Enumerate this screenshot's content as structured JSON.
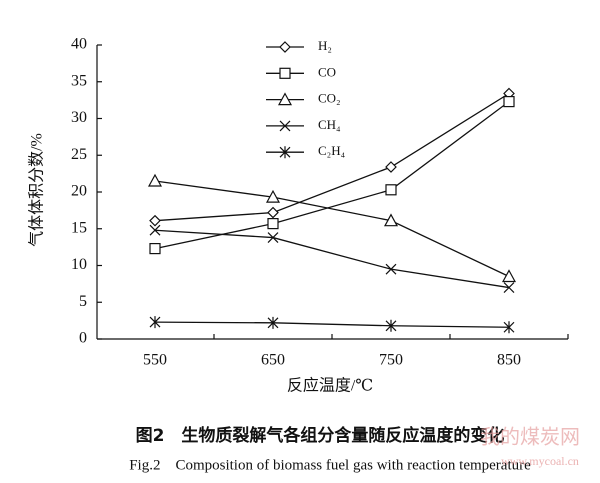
{
  "chart_data": {
    "type": "line",
    "ylabel": "气体体积分数/%",
    "xlabel": "反应温度/℃",
    "caption_cn": "图2　生物质裂解气各组分含量随反应温度的变化",
    "caption_en": "Fig.2　Composition of biomass fuel gas with reaction temperature",
    "watermark": "我的煤炭网",
    "watermark_url": "www.mycoal.cn",
    "categories": [
      "550",
      "650",
      "750",
      "850"
    ],
    "ylim": [
      0,
      40
    ],
    "yticks": [
      0,
      5,
      10,
      15,
      20,
      25,
      30,
      35,
      40
    ],
    "legend": "top",
    "series": [
      {
        "name": "H₂",
        "color": "#111111",
        "marker": "diamond",
        "values": [
          16.1,
          17.2,
          23.4,
          33.4
        ]
      },
      {
        "name": "CO",
        "color": "#111111",
        "marker": "square",
        "values": [
          12.3,
          15.7,
          20.3,
          32.3
        ]
      },
      {
        "name": "CO₂",
        "color": "#111111",
        "marker": "triangle",
        "values": [
          21.5,
          19.3,
          16.1,
          8.5
        ]
      },
      {
        "name": "CH₄",
        "color": "#111111",
        "marker": "x",
        "values": [
          14.8,
          13.8,
          9.5,
          7.0
        ]
      },
      {
        "name": "C₂H₄",
        "color": "#111111",
        "marker": "asterisk",
        "values": [
          2.3,
          2.2,
          1.8,
          1.6
        ]
      }
    ]
  }
}
